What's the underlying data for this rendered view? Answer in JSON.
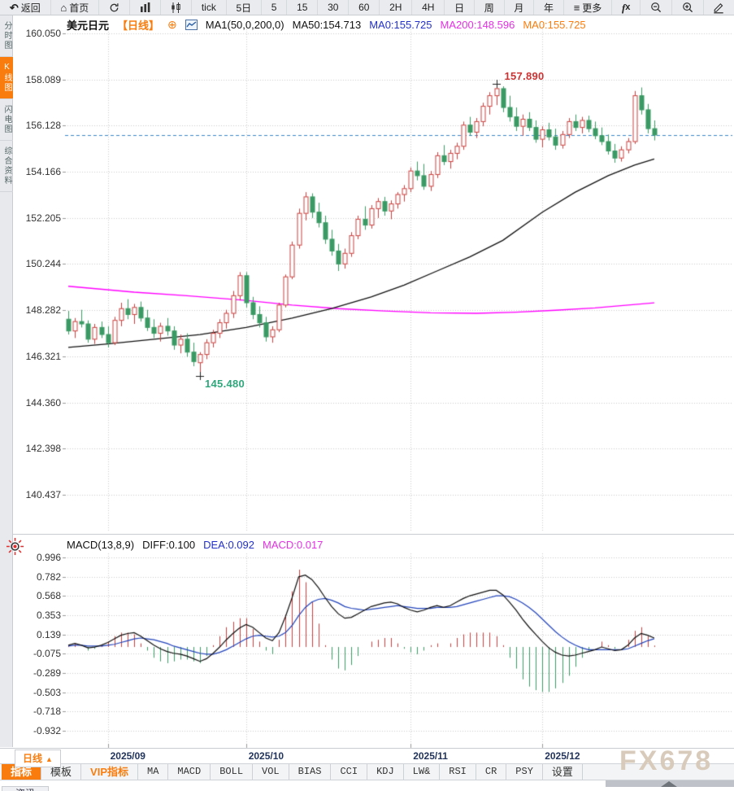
{
  "toolbar": {
    "items": [
      {
        "name": "back",
        "icon": "back",
        "label": "返回"
      },
      {
        "name": "home",
        "icon": "home",
        "label": "首页"
      },
      {
        "name": "refresh",
        "icon": "refresh",
        "label": ""
      },
      {
        "name": "chart-type-bar",
        "icon": "bars",
        "label": ""
      },
      {
        "name": "chart-type-candle",
        "icon": "candles",
        "label": ""
      },
      {
        "name": "interval-tick",
        "label": "tick"
      },
      {
        "name": "interval-5d",
        "label": "5日"
      },
      {
        "name": "interval-5",
        "label": "5"
      },
      {
        "name": "interval-15",
        "label": "15"
      },
      {
        "name": "interval-30",
        "label": "30"
      },
      {
        "name": "interval-60",
        "label": "60"
      },
      {
        "name": "interval-2h",
        "label": "2H"
      },
      {
        "name": "interval-4h",
        "label": "4H"
      },
      {
        "name": "interval-day",
        "label": "日"
      },
      {
        "name": "interval-week",
        "label": "周"
      },
      {
        "name": "interval-month",
        "label": "月"
      },
      {
        "name": "interval-year",
        "label": "年"
      },
      {
        "name": "more",
        "icon": "menu",
        "label": "更多"
      },
      {
        "name": "fx-functions",
        "icon": "fx",
        "label": ""
      },
      {
        "name": "zoom-out",
        "icon": "zoom-out",
        "label": ""
      },
      {
        "name": "zoom-in",
        "icon": "zoom-in",
        "label": ""
      },
      {
        "name": "draw",
        "icon": "pencil",
        "label": ""
      }
    ]
  },
  "sidebar": {
    "items": [
      {
        "label": "分时图",
        "active": false
      },
      {
        "label": "K线图",
        "active": true
      },
      {
        "label": "闪电图",
        "active": false
      },
      {
        "label": "综合资料",
        "active": false
      }
    ]
  },
  "header": {
    "symbol": "美元日元",
    "period": "【日线】",
    "add_icon": "⊕",
    "ma_settings": "MA1(50,0,200,0)",
    "ma50": "MA50:154.713",
    "ma0_blue": "MA0:155.725",
    "ma200": "MA200:148.596",
    "ma0_orange": "MA0:155.725"
  },
  "macd_header": {
    "title": "MACD(13,8,9)",
    "diff": "DIFF:0.100",
    "dea": "DEA:0.092",
    "macd": "MACD:0.017"
  },
  "axis_row": {
    "period_button": {
      "label": "日线",
      "arrow": "▲"
    }
  },
  "indicator_bar": {
    "items": [
      {
        "label": "指标",
        "state": "active"
      },
      {
        "label": "模板",
        "state": "normal"
      },
      {
        "label": "VIP指标",
        "state": "vip"
      },
      {
        "label": "MA",
        "state": "normal"
      },
      {
        "label": "MACD",
        "state": "normal"
      },
      {
        "label": "BOLL",
        "state": "normal"
      },
      {
        "label": "VOL",
        "state": "normal"
      },
      {
        "label": "BIAS",
        "state": "normal"
      },
      {
        "label": "CCI",
        "state": "normal"
      },
      {
        "label": "KDJ",
        "state": "normal"
      },
      {
        "label": "LW&",
        "state": "normal"
      },
      {
        "label": "RSI",
        "state": "normal"
      },
      {
        "label": "CR",
        "state": "normal"
      },
      {
        "label": "PSY",
        "state": "normal"
      },
      {
        "label": "设置",
        "state": "normal"
      }
    ]
  },
  "bottom_strip": {
    "partial_tab": "资讯"
  },
  "watermark": "FX678",
  "colors": {
    "accent": "#f87d0e",
    "up": "#c8403e",
    "down": "#3a9a64",
    "ma50": "#111111",
    "ma200": "#ff00ff",
    "diff_line": "#111111",
    "dea_line": "#2244bb",
    "macd_value": "#e331e3",
    "blue_text": "#2230c8",
    "last_price_line": "#3a87c8",
    "annotation_high": "#cc3333",
    "annotation_low": "#2fa77c",
    "grid": "#cccccc",
    "watermark": "#d7c9b8"
  },
  "chart_data": {
    "type": "candlestick+macd",
    "symbol": "美元日元",
    "timeframe": "日线",
    "y_axis_main": {
      "ticks": [
        "160.050",
        "158.089",
        "156.128",
        "154.166",
        "152.205",
        "150.244",
        "148.282",
        "146.321",
        "144.360",
        "142.398",
        "140.437"
      ]
    },
    "y_axis_macd": {
      "ticks": [
        "0.996",
        "0.782",
        "0.568",
        "0.353",
        "0.139",
        "-0.075",
        "-0.289",
        "-0.503",
        "-0.718",
        "-0.932"
      ]
    },
    "x_axis": {
      "labels": [
        {
          "label": "2025/09",
          "index": 6
        },
        {
          "label": "2025/10",
          "index": 27
        },
        {
          "label": "2025/11",
          "index": 52
        },
        {
          "label": "2025/12",
          "index": 72
        }
      ]
    },
    "last_price": 155.725,
    "annotations": {
      "high": {
        "label": "157.890",
        "index": 65,
        "price": 157.89
      },
      "low": {
        "label": "145.480",
        "index": 20,
        "price": 145.48
      }
    },
    "candles": [
      [
        147.9,
        148.25,
        147.25,
        147.4
      ],
      [
        147.4,
        147.95,
        147.1,
        147.8
      ],
      [
        147.8,
        148.3,
        147.55,
        147.7
      ],
      [
        147.7,
        147.85,
        146.9,
        147.05
      ],
      [
        147.05,
        147.7,
        146.85,
        147.55
      ],
      [
        147.55,
        147.8,
        147.1,
        147.25
      ],
      [
        147.25,
        147.6,
        146.7,
        146.9
      ],
      [
        146.9,
        148.0,
        146.8,
        147.85
      ],
      [
        147.85,
        148.6,
        147.6,
        148.35
      ],
      [
        148.35,
        148.75,
        147.9,
        148.1
      ],
      [
        148.1,
        148.55,
        147.7,
        148.4
      ],
      [
        148.4,
        148.65,
        147.8,
        147.95
      ],
      [
        147.95,
        148.3,
        147.4,
        147.55
      ],
      [
        147.55,
        147.9,
        147.1,
        147.3
      ],
      [
        147.3,
        147.75,
        146.95,
        147.6
      ],
      [
        147.6,
        147.95,
        147.2,
        147.4
      ],
      [
        147.4,
        147.6,
        146.6,
        146.8
      ],
      [
        146.8,
        147.25,
        146.45,
        147.05
      ],
      [
        147.05,
        147.3,
        146.3,
        146.5
      ],
      [
        146.5,
        146.9,
        145.9,
        146.1
      ],
      [
        146.05,
        146.5,
        145.48,
        146.4
      ],
      [
        146.4,
        147.05,
        146.2,
        146.9
      ],
      [
        146.9,
        147.45,
        146.7,
        147.3
      ],
      [
        147.3,
        147.9,
        147.1,
        147.75
      ],
      [
        147.75,
        148.3,
        147.5,
        148.15
      ],
      [
        148.15,
        149.1,
        147.95,
        148.9
      ],
      [
        148.9,
        149.9,
        148.7,
        149.75
      ],
      [
        149.75,
        149.9,
        148.4,
        148.6
      ],
      [
        148.6,
        148.85,
        147.9,
        148.1
      ],
      [
        148.1,
        148.45,
        147.55,
        147.75
      ],
      [
        147.75,
        148.0,
        146.95,
        147.15
      ],
      [
        147.15,
        147.6,
        146.9,
        147.45
      ],
      [
        147.45,
        148.6,
        147.35,
        148.5
      ],
      [
        148.5,
        149.8,
        148.4,
        149.7
      ],
      [
        149.7,
        151.2,
        149.6,
        151.05
      ],
      [
        151.05,
        152.6,
        150.9,
        152.4
      ],
      [
        152.4,
        153.3,
        152.1,
        153.1
      ],
      [
        153.1,
        153.25,
        152.2,
        152.45
      ],
      [
        152.45,
        152.85,
        151.8,
        152.0
      ],
      [
        152.0,
        152.3,
        151.1,
        151.3
      ],
      [
        151.3,
        151.7,
        150.6,
        150.8
      ],
      [
        150.8,
        151.1,
        149.95,
        150.25
      ],
      [
        150.25,
        150.9,
        150.05,
        150.7
      ],
      [
        150.7,
        151.6,
        150.55,
        151.45
      ],
      [
        151.45,
        152.3,
        151.3,
        152.15
      ],
      [
        152.15,
        152.7,
        151.7,
        151.9
      ],
      [
        151.9,
        152.75,
        151.75,
        152.6
      ],
      [
        152.6,
        153.05,
        152.2,
        152.9
      ],
      [
        152.9,
        153.1,
        152.3,
        152.5
      ],
      [
        152.5,
        152.95,
        152.15,
        152.8
      ],
      [
        152.8,
        153.3,
        152.6,
        153.2
      ],
      [
        153.2,
        153.6,
        152.9,
        153.45
      ],
      [
        153.45,
        154.35,
        153.3,
        154.2
      ],
      [
        154.2,
        154.6,
        153.8,
        154.0
      ],
      [
        154.0,
        154.5,
        153.4,
        153.55
      ],
      [
        153.55,
        154.2,
        153.35,
        154.05
      ],
      [
        154.05,
        155.0,
        153.9,
        154.85
      ],
      [
        154.85,
        155.3,
        154.45,
        154.6
      ],
      [
        154.6,
        155.1,
        154.3,
        154.95
      ],
      [
        154.95,
        155.4,
        154.7,
        155.25
      ],
      [
        155.25,
        156.3,
        155.1,
        156.15
      ],
      [
        156.15,
        156.5,
        155.7,
        155.85
      ],
      [
        155.85,
        156.45,
        155.6,
        156.3
      ],
      [
        156.3,
        157.1,
        156.1,
        156.95
      ],
      [
        156.95,
        157.55,
        156.6,
        157.4
      ],
      [
        157.4,
        157.89,
        157.0,
        157.7
      ],
      [
        157.7,
        157.8,
        156.7,
        156.9
      ],
      [
        156.9,
        157.4,
        156.3,
        156.5
      ],
      [
        156.5,
        156.9,
        155.9,
        156.1
      ],
      [
        156.1,
        156.6,
        155.7,
        156.4
      ],
      [
        156.4,
        156.7,
        155.9,
        156.05
      ],
      [
        156.05,
        156.35,
        155.4,
        155.55
      ],
      [
        155.55,
        156.1,
        155.2,
        155.95
      ],
      [
        155.95,
        156.25,
        155.5,
        155.65
      ],
      [
        155.65,
        156.0,
        155.1,
        155.3
      ],
      [
        155.3,
        155.9,
        155.15,
        155.75
      ],
      [
        155.75,
        156.45,
        155.6,
        156.3
      ],
      [
        156.3,
        156.6,
        155.9,
        156.05
      ],
      [
        156.05,
        156.5,
        155.8,
        156.35
      ],
      [
        156.35,
        156.55,
        155.85,
        156.0
      ],
      [
        156.0,
        156.3,
        155.55,
        155.7
      ],
      [
        155.7,
        156.05,
        155.3,
        155.45
      ],
      [
        155.45,
        155.75,
        154.9,
        155.05
      ],
      [
        155.05,
        155.35,
        154.55,
        154.75
      ],
      [
        154.75,
        155.25,
        154.6,
        155.1
      ],
      [
        155.1,
        155.6,
        154.95,
        155.45
      ],
      [
        155.45,
        157.6,
        155.35,
        157.4
      ],
      [
        157.4,
        157.75,
        156.6,
        156.8
      ],
      [
        156.8,
        157.05,
        155.8,
        156.0
      ],
      [
        156.0,
        156.35,
        155.5,
        155.73
      ]
    ],
    "ma50_points": [
      [
        0,
        146.7
      ],
      [
        6,
        146.85
      ],
      [
        13,
        147.05
      ],
      [
        20,
        147.25
      ],
      [
        27,
        147.55
      ],
      [
        34,
        147.95
      ],
      [
        40,
        148.35
      ],
      [
        46,
        148.85
      ],
      [
        51,
        149.35
      ],
      [
        56,
        149.95
      ],
      [
        61,
        150.55
      ],
      [
        66,
        151.25
      ],
      [
        72,
        152.45
      ],
      [
        77,
        153.3
      ],
      [
        82,
        154.0
      ],
      [
        86,
        154.45
      ],
      [
        89,
        154.713
      ]
    ],
    "ma200_points": [
      [
        0,
        149.3
      ],
      [
        10,
        149.05
      ],
      [
        18,
        148.9
      ],
      [
        27,
        148.7
      ],
      [
        34,
        148.5
      ],
      [
        41,
        148.35
      ],
      [
        48,
        148.25
      ],
      [
        55,
        148.17
      ],
      [
        62,
        148.15
      ],
      [
        68,
        148.2
      ],
      [
        74,
        148.28
      ],
      [
        80,
        148.38
      ],
      [
        85,
        148.5
      ],
      [
        89,
        148.596
      ]
    ],
    "macd": {
      "hist_formula": "2*(diff-dea)",
      "diff": [
        0.02,
        0.04,
        0.02,
        -0.01,
        0.0,
        0.02,
        0.05,
        0.09,
        0.13,
        0.15,
        0.16,
        0.12,
        0.07,
        0.02,
        -0.02,
        -0.05,
        -0.07,
        -0.08,
        -0.1,
        -0.13,
        -0.16,
        -0.13,
        -0.07,
        0.0,
        0.08,
        0.15,
        0.21,
        0.25,
        0.22,
        0.16,
        0.1,
        0.07,
        0.16,
        0.34,
        0.55,
        0.78,
        0.8,
        0.75,
        0.66,
        0.55,
        0.45,
        0.37,
        0.32,
        0.33,
        0.37,
        0.41,
        0.45,
        0.47,
        0.49,
        0.5,
        0.48,
        0.44,
        0.41,
        0.39,
        0.41,
        0.44,
        0.46,
        0.44,
        0.46,
        0.5,
        0.54,
        0.57,
        0.59,
        0.61,
        0.63,
        0.63,
        0.58,
        0.5,
        0.41,
        0.31,
        0.22,
        0.14,
        0.06,
        -0.01,
        -0.06,
        -0.09,
        -0.1,
        -0.09,
        -0.07,
        -0.05,
        -0.03,
        0.0,
        -0.02,
        -0.04,
        -0.03,
        0.02,
        0.1,
        0.15,
        0.13,
        0.1
      ],
      "dea": [
        0.01,
        0.02,
        0.02,
        0.01,
        0.01,
        0.01,
        0.02,
        0.03,
        0.05,
        0.07,
        0.09,
        0.1,
        0.09,
        0.08,
        0.06,
        0.04,
        0.01,
        -0.01,
        -0.03,
        -0.05,
        -0.07,
        -0.08,
        -0.08,
        -0.06,
        -0.03,
        0.01,
        0.05,
        0.09,
        0.12,
        0.13,
        0.12,
        0.11,
        0.12,
        0.16,
        0.24,
        0.35,
        0.44,
        0.5,
        0.53,
        0.54,
        0.52,
        0.49,
        0.45,
        0.43,
        0.42,
        0.41,
        0.42,
        0.43,
        0.44,
        0.45,
        0.46,
        0.45,
        0.44,
        0.43,
        0.43,
        0.43,
        0.44,
        0.44,
        0.44,
        0.45,
        0.47,
        0.49,
        0.51,
        0.53,
        0.55,
        0.57,
        0.57,
        0.56,
        0.53,
        0.49,
        0.44,
        0.38,
        0.31,
        0.24,
        0.17,
        0.11,
        0.06,
        0.02,
        -0.01,
        -0.03,
        -0.03,
        -0.03,
        -0.03,
        -0.03,
        -0.03,
        -0.02,
        0.01,
        0.04,
        0.07,
        0.092
      ]
    }
  }
}
